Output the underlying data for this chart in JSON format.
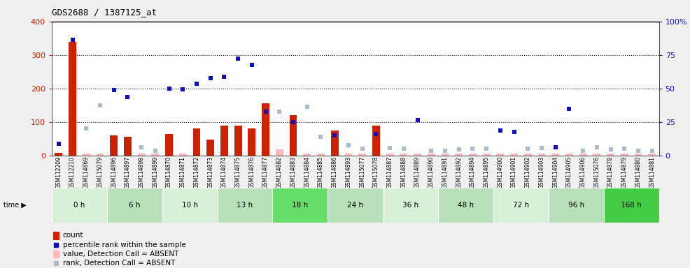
{
  "title": "GDS2688 / 1387125_at",
  "ylim_left": [
    0,
    400
  ],
  "ylim_right": [
    0,
    100
  ],
  "yticks_left": [
    0,
    100,
    200,
    300,
    400
  ],
  "yticks_right": [
    0,
    25,
    50,
    75,
    100
  ],
  "yticklabels_right": [
    "0",
    "25",
    "50",
    "75",
    "100%"
  ],
  "samples": [
    "GSM112209",
    "GSM112210",
    "GSM114869",
    "GSM115079",
    "GSM114896",
    "GSM114897",
    "GSM114898",
    "GSM114899",
    "GSM114870",
    "GSM114871",
    "GSM114872",
    "GSM114873",
    "GSM114874",
    "GSM114875",
    "GSM114876",
    "GSM114877",
    "GSM114882",
    "GSM114883",
    "GSM114884",
    "GSM114885",
    "GSM114886",
    "GSM114893",
    "GSM115077",
    "GSM115078",
    "GSM114887",
    "GSM114888",
    "GSM114889",
    "GSM114890",
    "GSM114891",
    "GSM114892",
    "GSM114894",
    "GSM114895",
    "GSM114900",
    "GSM114901",
    "GSM114902",
    "GSM114903",
    "GSM114904",
    "GSM114905",
    "GSM114906",
    "GSM115076",
    "GSM114878",
    "GSM114879",
    "GSM114880",
    "GSM114881"
  ],
  "count_values": [
    8,
    340,
    5,
    5,
    60,
    55,
    5,
    5,
    65,
    5,
    80,
    48,
    90,
    90,
    80,
    155,
    18,
    120,
    5,
    5,
    75,
    5,
    5,
    90,
    5,
    5,
    5,
    5,
    5,
    5,
    5,
    5,
    5,
    5,
    5,
    5,
    5,
    5,
    5,
    5,
    5,
    5,
    5,
    5
  ],
  "count_absent": [
    false,
    false,
    true,
    true,
    false,
    false,
    true,
    true,
    false,
    true,
    false,
    false,
    false,
    false,
    false,
    false,
    true,
    false,
    true,
    true,
    false,
    true,
    true,
    false,
    true,
    true,
    true,
    true,
    true,
    true,
    true,
    true,
    true,
    true,
    true,
    true,
    true,
    true,
    true,
    true,
    true,
    true,
    true,
    true
  ],
  "rank_values": [
    35,
    345,
    80,
    150,
    195,
    175,
    25,
    15,
    200,
    198,
    215,
    230,
    235,
    290,
    270,
    130,
    130,
    100,
    145,
    55,
    60,
    30,
    20,
    65,
    22,
    20,
    105,
    15,
    15,
    18,
    20,
    20,
    75,
    70,
    20,
    22,
    25,
    140,
    15,
    25,
    18,
    20,
    15,
    15
  ],
  "rank_absent": [
    false,
    false,
    true,
    true,
    false,
    false,
    true,
    true,
    false,
    false,
    false,
    false,
    false,
    false,
    false,
    false,
    true,
    false,
    true,
    true,
    false,
    true,
    true,
    false,
    true,
    true,
    false,
    true,
    true,
    true,
    true,
    true,
    false,
    false,
    true,
    true,
    false,
    false,
    true,
    true,
    true,
    true,
    true,
    true
  ],
  "time_groups": [
    {
      "label": "0 h",
      "start": 0,
      "end": 4,
      "color": "#d8f0d8"
    },
    {
      "label": "6 h",
      "start": 4,
      "end": 8,
      "color": "#b8e0b8"
    },
    {
      "label": "10 h",
      "start": 8,
      "end": 12,
      "color": "#d8f0d8"
    },
    {
      "label": "13 h",
      "start": 12,
      "end": 16,
      "color": "#b8e0b8"
    },
    {
      "label": "18 h",
      "start": 16,
      "end": 20,
      "color": "#66dd66"
    },
    {
      "label": "24 h",
      "start": 20,
      "end": 24,
      "color": "#b8e0b8"
    },
    {
      "label": "36 h",
      "start": 24,
      "end": 28,
      "color": "#d8f0d8"
    },
    {
      "label": "48 h",
      "start": 28,
      "end": 32,
      "color": "#b8e0b8"
    },
    {
      "label": "72 h",
      "start": 32,
      "end": 36,
      "color": "#d8f0d8"
    },
    {
      "label": "96 h",
      "start": 36,
      "end": 40,
      "color": "#b8e0b8"
    },
    {
      "label": "168 h",
      "start": 40,
      "end": 44,
      "color": "#44cc44"
    }
  ],
  "bar_width": 0.55,
  "marker_size": 5,
  "color_red": "#cc2200",
  "color_pink": "#ffbbbb",
  "color_blue": "#1111bb",
  "color_lightblue": "#aabbcc",
  "bg_color": "#f0f0f0",
  "xticklabel_bg": "#d8d8d8",
  "legend_items": [
    {
      "label": "count",
      "color": "#cc2200",
      "type": "bar"
    },
    {
      "label": "percentile rank within the sample",
      "color": "#1111bb",
      "type": "square"
    },
    {
      "label": "value, Detection Call = ABSENT",
      "color": "#ffbbbb",
      "type": "bar"
    },
    {
      "label": "rank, Detection Call = ABSENT",
      "color": "#aabbcc",
      "type": "square"
    }
  ]
}
